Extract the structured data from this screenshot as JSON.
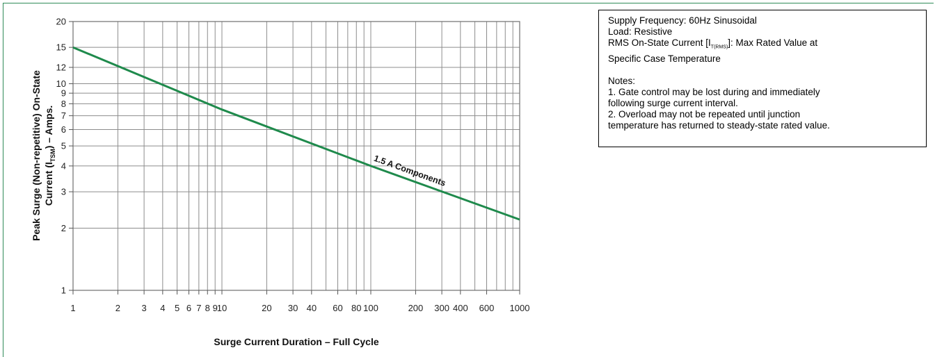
{
  "notes": {
    "supply": "Supply Frequency: 60Hz Sinusoidal",
    "load": "Load: Resistive",
    "rms_prefix": "RMS On-State Current [I",
    "rms_sub": "T(RMS)",
    "rms_suffix": "]: Max Rated Value at",
    "rms_line2": "Specific Case Temperature",
    "notes_title": "Notes:",
    "note1_line1": "1. Gate control may be lost during and immediately",
    "note1_line2": "following surge current interval.",
    "note2_line1": "2. Overload may not be repeated until junction",
    "note2_line2": "temperature has returned to steady-state rated value."
  },
  "chart_data": {
    "type": "line",
    "xscale": "log",
    "yscale": "log",
    "xlim": [
      1,
      1000
    ],
    "ylim": [
      1,
      20
    ],
    "grid": true,
    "xlabel": "Surge Current Duration – Full Cycle",
    "ylabel_line1": "Peak Surge (Non-repetitive) On-State",
    "ylabel_line2_prefix": "Current (I",
    "ylabel_line2_sub": "TSM",
    "ylabel_line2_suffix": ") – Amps.",
    "x_ticks": [
      1,
      2,
      3,
      4,
      5,
      6,
      7,
      8,
      9,
      10,
      20,
      30,
      40,
      60,
      80,
      100,
      200,
      300,
      400,
      600,
      1000
    ],
    "y_ticks": [
      1,
      2,
      3,
      4,
      5,
      6,
      7,
      8,
      9,
      10,
      12,
      15,
      20
    ],
    "series": [
      {
        "name": "1.5 A Components",
        "color": "#1f8a4c",
        "x": [
          1,
          10,
          100,
          1000
        ],
        "y": [
          15,
          7.5,
          4.0,
          2.2
        ]
      }
    ]
  }
}
